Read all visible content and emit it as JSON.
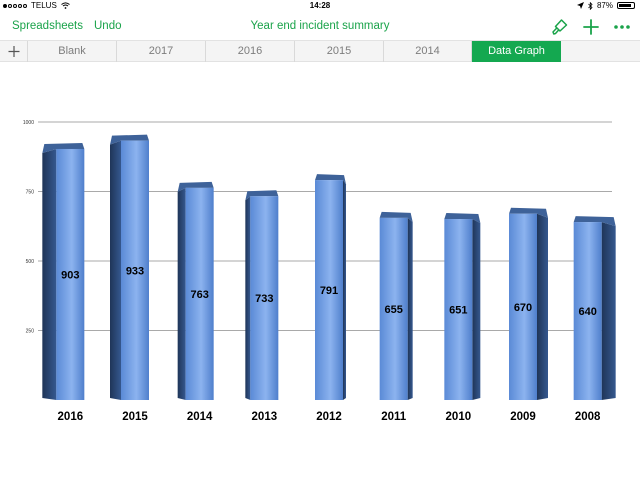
{
  "status": {
    "carrier": "TELUS",
    "time": "14:28",
    "battery": "87%",
    "battery_level": 0.87
  },
  "toolbar": {
    "spreadsheets_label": "Spreadsheets",
    "undo_label": "Undo",
    "title": "Year end incident summary"
  },
  "tabs": [
    {
      "label": "Blank"
    },
    {
      "label": "2017"
    },
    {
      "label": "2016"
    },
    {
      "label": "2015"
    },
    {
      "label": "2014"
    },
    {
      "label": "Data Graph",
      "active": true
    }
  ],
  "colors": {
    "accent": "#1aa34a",
    "active_tab": "#14a850",
    "bar_light": "#7fa9ec",
    "bar_mid": "#5a8ad6",
    "bar_dark": "#2c4a80"
  },
  "chart_data": {
    "type": "bar",
    "categories": [
      "2016",
      "2015",
      "2014",
      "2013",
      "2012",
      "2011",
      "2010",
      "2009",
      "2008"
    ],
    "values": [
      903,
      933,
      763,
      733,
      791,
      655,
      651,
      670,
      640
    ],
    "ylim": [
      0,
      1000
    ],
    "yticks": [
      "1000",
      "750",
      "500",
      "250"
    ],
    "grid": true,
    "three_d": true
  }
}
